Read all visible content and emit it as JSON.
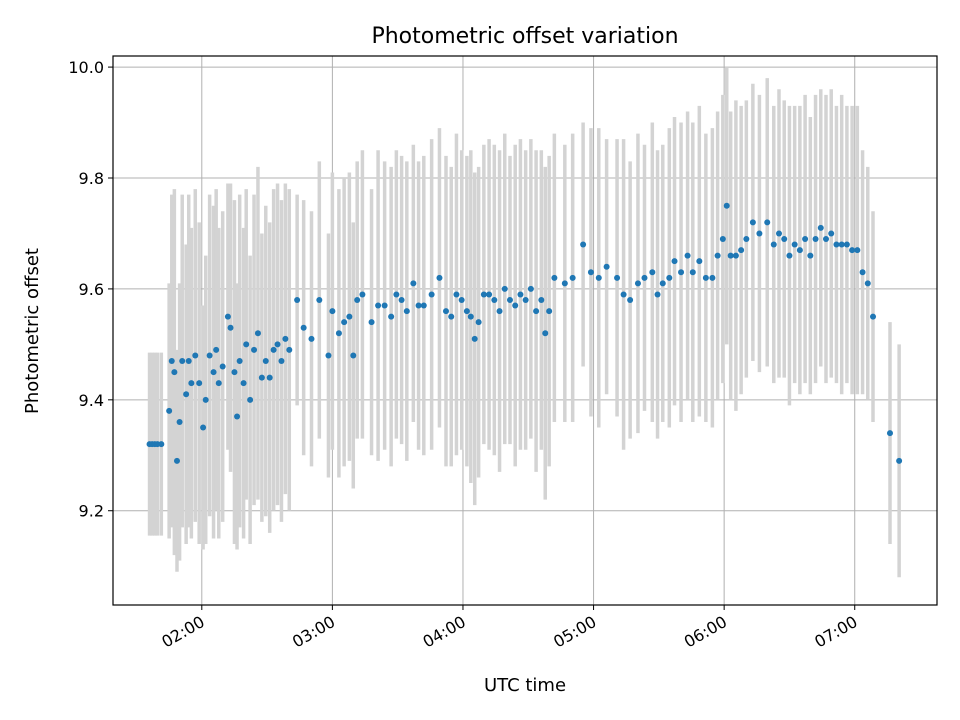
{
  "chart_data": {
    "type": "scatter",
    "title": "Photometric offset variation",
    "xlabel": "UTC time",
    "ylabel": "Photometric offset",
    "x_unit": "hour",
    "xlim": [
      1.32,
      7.63
    ],
    "ylim": [
      9.03,
      10.02
    ],
    "x_ticks": [
      2,
      3,
      4,
      5,
      6,
      7
    ],
    "x_tick_labels": [
      "02:00",
      "03:00",
      "04:00",
      "05:00",
      "06:00",
      "07:00"
    ],
    "y_ticks": [
      9.2,
      9.4,
      9.6,
      9.8,
      10.0
    ],
    "y_tick_labels": [
      "9.2",
      "9.4",
      "9.6",
      "9.8",
      "10.0"
    ],
    "grid": true,
    "colors": {
      "points": "#1f77b4",
      "errorbars": "#d3d3d3"
    },
    "series": [
      {
        "points": [
          [
            1.6,
            9.32,
            0.165
          ],
          [
            1.62,
            9.32,
            0.165
          ],
          [
            1.64,
            9.32,
            0.165
          ],
          [
            1.66,
            9.32,
            0.165
          ],
          [
            1.69,
            9.32,
            0.165
          ],
          [
            1.75,
            9.38,
            0.23
          ],
          [
            1.77,
            9.47,
            0.3
          ],
          [
            1.79,
            9.45,
            0.33
          ],
          [
            1.81,
            9.29,
            0.2
          ],
          [
            1.83,
            9.36,
            0.25
          ],
          [
            1.85,
            9.47,
            0.3
          ],
          [
            1.88,
            9.41,
            0.27
          ],
          [
            1.9,
            9.47,
            0.3
          ],
          [
            1.92,
            9.43,
            0.28
          ],
          [
            1.95,
            9.48,
            0.3
          ],
          [
            1.98,
            9.43,
            0.29
          ],
          [
            2.01,
            9.35,
            0.22
          ],
          [
            2.03,
            9.4,
            0.26
          ],
          [
            2.06,
            9.48,
            0.29
          ],
          [
            2.09,
            9.45,
            0.3
          ],
          [
            2.11,
            9.49,
            0.29
          ],
          [
            2.13,
            9.43,
            0.28
          ],
          [
            2.16,
            9.46,
            0.28
          ],
          [
            2.2,
            9.55,
            0.24
          ],
          [
            2.22,
            9.53,
            0.26
          ],
          [
            2.25,
            9.45,
            0.31
          ],
          [
            2.27,
            9.37,
            0.24
          ],
          [
            2.29,
            9.47,
            0.3
          ],
          [
            2.32,
            9.43,
            0.28
          ],
          [
            2.34,
            9.5,
            0.28
          ],
          [
            2.37,
            9.4,
            0.26
          ],
          [
            2.4,
            9.49,
            0.28
          ],
          [
            2.43,
            9.52,
            0.3
          ],
          [
            2.46,
            9.44,
            0.26
          ],
          [
            2.49,
            9.47,
            0.28
          ],
          [
            2.52,
            9.44,
            0.28
          ],
          [
            2.55,
            9.49,
            0.29
          ],
          [
            2.58,
            9.5,
            0.29
          ],
          [
            2.61,
            9.47,
            0.29
          ],
          [
            2.64,
            9.51,
            0.28
          ],
          [
            2.67,
            9.49,
            0.29
          ],
          [
            2.73,
            9.58,
            0.19
          ],
          [
            2.78,
            9.53,
            0.23
          ],
          [
            2.84,
            9.51,
            0.23
          ],
          [
            2.9,
            9.58,
            0.25
          ],
          [
            2.97,
            9.48,
            0.22
          ],
          [
            3.0,
            9.56,
            0.25
          ],
          [
            3.05,
            9.52,
            0.26
          ],
          [
            3.09,
            9.54,
            0.26
          ],
          [
            3.13,
            9.55,
            0.26
          ],
          [
            3.16,
            9.48,
            0.24
          ],
          [
            3.19,
            9.58,
            0.25
          ],
          [
            3.23,
            9.59,
            0.26
          ],
          [
            3.3,
            9.54,
            0.24
          ],
          [
            3.35,
            9.57,
            0.28
          ],
          [
            3.4,
            9.57,
            0.26
          ],
          [
            3.45,
            9.55,
            0.27
          ],
          [
            3.49,
            9.59,
            0.26
          ],
          [
            3.53,
            9.58,
            0.26
          ],
          [
            3.57,
            9.56,
            0.27
          ],
          [
            3.62,
            9.61,
            0.25
          ],
          [
            3.66,
            9.57,
            0.26
          ],
          [
            3.7,
            9.57,
            0.27
          ],
          [
            3.76,
            9.59,
            0.28
          ],
          [
            3.82,
            9.62,
            0.27
          ],
          [
            3.87,
            9.56,
            0.28
          ],
          [
            3.91,
            9.55,
            0.27
          ],
          [
            3.95,
            9.59,
            0.29
          ],
          [
            3.99,
            9.58,
            0.27
          ],
          [
            4.03,
            9.56,
            0.28
          ],
          [
            4.06,
            9.55,
            0.3
          ],
          [
            4.09,
            9.51,
            0.3
          ],
          [
            4.12,
            9.54,
            0.28
          ],
          [
            4.16,
            9.59,
            0.27
          ],
          [
            4.2,
            9.59,
            0.28
          ],
          [
            4.24,
            9.58,
            0.28
          ],
          [
            4.28,
            9.56,
            0.29
          ],
          [
            4.32,
            9.6,
            0.28
          ],
          [
            4.36,
            9.58,
            0.26
          ],
          [
            4.4,
            9.57,
            0.29
          ],
          [
            4.44,
            9.59,
            0.28
          ],
          [
            4.48,
            9.58,
            0.27
          ],
          [
            4.52,
            9.6,
            0.27
          ],
          [
            4.56,
            9.56,
            0.29
          ],
          [
            4.6,
            9.58,
            0.27
          ],
          [
            4.63,
            9.52,
            0.3
          ],
          [
            4.66,
            9.56,
            0.28
          ],
          [
            4.7,
            9.62,
            0.26
          ],
          [
            4.78,
            9.61,
            0.25
          ],
          [
            4.84,
            9.62,
            0.26
          ],
          [
            4.92,
            9.68,
            0.22
          ],
          [
            4.98,
            9.63,
            0.26
          ],
          [
            5.04,
            9.62,
            0.27
          ],
          [
            5.1,
            9.64,
            0.23
          ],
          [
            5.18,
            9.62,
            0.25
          ],
          [
            5.23,
            9.59,
            0.28
          ],
          [
            5.28,
            9.58,
            0.25
          ],
          [
            5.34,
            9.61,
            0.27
          ],
          [
            5.39,
            9.62,
            0.24
          ],
          [
            5.45,
            9.63,
            0.27
          ],
          [
            5.49,
            9.59,
            0.26
          ],
          [
            5.53,
            9.61,
            0.25
          ],
          [
            5.58,
            9.62,
            0.27
          ],
          [
            5.62,
            9.65,
            0.26
          ],
          [
            5.67,
            9.63,
            0.27
          ],
          [
            5.72,
            9.66,
            0.26
          ],
          [
            5.76,
            9.63,
            0.27
          ],
          [
            5.81,
            9.65,
            0.28
          ],
          [
            5.86,
            9.62,
            0.26
          ],
          [
            5.91,
            9.62,
            0.27
          ],
          [
            5.95,
            9.66,
            0.26
          ],
          [
            5.99,
            9.69,
            0.26
          ],
          [
            6.02,
            9.75,
            0.25
          ],
          [
            6.05,
            9.66,
            0.26
          ],
          [
            6.09,
            9.66,
            0.28
          ],
          [
            6.13,
            9.67,
            0.26
          ],
          [
            6.17,
            9.69,
            0.25
          ],
          [
            6.22,
            9.72,
            0.25
          ],
          [
            6.27,
            9.7,
            0.25
          ],
          [
            6.33,
            9.72,
            0.26
          ],
          [
            6.38,
            9.68,
            0.25
          ],
          [
            6.42,
            9.7,
            0.26
          ],
          [
            6.46,
            9.69,
            0.25
          ],
          [
            6.5,
            9.66,
            0.27
          ],
          [
            6.54,
            9.68,
            0.25
          ],
          [
            6.58,
            9.67,
            0.26
          ],
          [
            6.62,
            9.69,
            0.26
          ],
          [
            6.66,
            9.66,
            0.25
          ],
          [
            6.7,
            9.69,
            0.26
          ],
          [
            6.74,
            9.71,
            0.25
          ],
          [
            6.78,
            9.69,
            0.26
          ],
          [
            6.82,
            9.7,
            0.26
          ],
          [
            6.86,
            9.68,
            0.25
          ],
          [
            6.9,
            9.68,
            0.27
          ],
          [
            6.94,
            9.68,
            0.25
          ],
          [
            6.98,
            9.67,
            0.26
          ],
          [
            7.02,
            9.67,
            0.26
          ],
          [
            7.06,
            9.63,
            0.22
          ],
          [
            7.1,
            9.61,
            0.21
          ],
          [
            7.14,
            9.55,
            0.19
          ],
          [
            7.27,
            9.34,
            0.2
          ],
          [
            7.34,
            9.29,
            0.21
          ]
        ]
      }
    ]
  }
}
